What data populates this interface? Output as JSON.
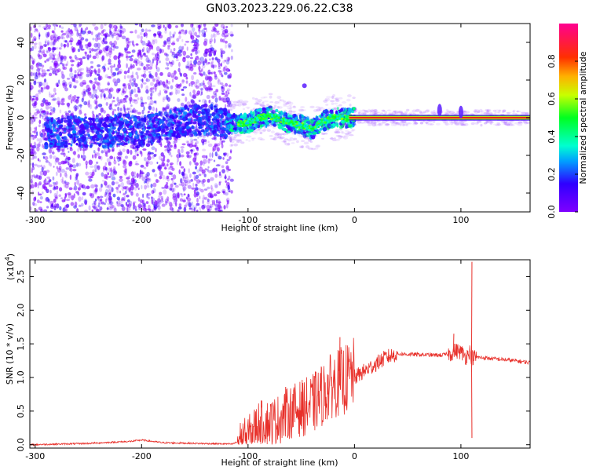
{
  "title": "GN03.2023.229.06.22.C38",
  "colors": {
    "snr_line": "#e8302a",
    "ridge_line": "#e81a1a",
    "ridge_outline": "#0a6a1a",
    "axis": "#000000"
  },
  "chart_data": [
    {
      "type": "heatmap",
      "xlabel": "Height of straight line (km)",
      "ylabel": "Frequency (Hz)",
      "xlim": [
        -305,
        165
      ],
      "ylim": [
        -50,
        50
      ],
      "xticks": [
        -300,
        -200,
        -100,
        0,
        100
      ],
      "yticks": [
        -40,
        -20,
        0,
        20,
        40
      ],
      "colorscale": "gist_rainbow",
      "colorbar": {
        "label": "Normalized spectral amplitude",
        "range": [
          0,
          1
        ],
        "ticks": [
          "0.0",
          "0.2",
          "0.4",
          "0.6",
          "0.8"
        ]
      },
      "noise_region_x": [
        -305,
        -115
      ],
      "ridge": {
        "x": [
          -280,
          -260,
          -240,
          -220,
          -200,
          -180,
          -160,
          -140,
          -120,
          -100,
          -90,
          -80,
          -70,
          -60,
          -50,
          -40,
          -30,
          -20,
          -10,
          0,
          20,
          40,
          60,
          80,
          100,
          120,
          140,
          165
        ],
        "freq": [
          -8,
          -7,
          -9,
          -6,
          -8,
          -4,
          -2,
          -1,
          -3,
          -3,
          0,
          1,
          -1,
          -3,
          -4,
          -6,
          -2,
          0,
          0,
          0,
          0,
          0,
          0,
          0,
          0,
          0,
          0,
          0
        ]
      },
      "features": [
        {
          "x": -47,
          "freq": 17
        },
        {
          "x": 100,
          "freq": 3
        },
        {
          "x": 80,
          "freq": 4
        }
      ]
    },
    {
      "type": "line",
      "xlabel": "Height of straight line (km)",
      "ylabel": "SNR (10 * v/v)",
      "multiplier_label": "(x10",
      "multiplier_exp": "4",
      "xlim": [
        -305,
        165
      ],
      "ylim": [
        -0.05,
        2.75
      ],
      "xticks": [
        -300,
        -200,
        -100,
        0,
        100
      ],
      "yticks": [
        0.0,
        0.5,
        1.0,
        1.5,
        2.0,
        2.5
      ],
      "series": [
        {
          "x": [
            -305,
            -250,
            -210,
            -200,
            -180,
            -150,
            -115,
            -100,
            -90,
            -80,
            -70,
            -60,
            -50,
            -40,
            -30,
            -20,
            -10,
            0,
            10,
            20,
            30,
            40,
            60,
            80,
            90,
            95,
            100,
            105,
            108,
            110,
            115,
            130,
            150,
            165
          ],
          "y": [
            0.0,
            0.02,
            0.05,
            0.07,
            0.03,
            0.02,
            0.01,
            0.1,
            0.3,
            0.3,
            0.35,
            0.45,
            0.5,
            0.55,
            0.7,
            0.85,
            0.9,
            1.0,
            1.1,
            1.2,
            1.3,
            1.35,
            1.34,
            1.33,
            1.35,
            1.4,
            1.38,
            1.3,
            1.4,
            1.3,
            1.3,
            1.28,
            1.25,
            1.22
          ]
        }
      ],
      "spikes": [
        {
          "x": 93,
          "y": 1.65
        },
        {
          "x": 110,
          "y": 2.72
        },
        {
          "x": 110,
          "y": 0.1
        },
        {
          "x": -14,
          "y": 1.6
        },
        {
          "x": -38,
          "y": 1.02
        },
        {
          "x": -65,
          "y": 0.86
        }
      ]
    }
  ]
}
